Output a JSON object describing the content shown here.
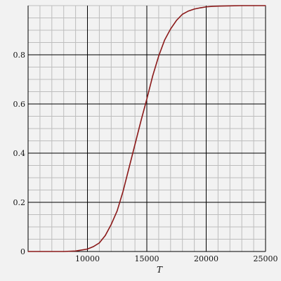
{
  "chart_data": {
    "type": "line",
    "xlabel": "T",
    "ylabel": "",
    "title": "",
    "xlim": [
      5000,
      25000
    ],
    "ylim": [
      0,
      1
    ],
    "grid": true,
    "x_ticks": [
      10000,
      15000,
      20000,
      25000
    ],
    "x_tick_labels": [
      "10000",
      "15000",
      "20000",
      "25000"
    ],
    "y_ticks": [
      0,
      0.2,
      0.4,
      0.6,
      0.8
    ],
    "y_tick_labels": [
      "0",
      "0.2",
      "0.4",
      "0.6",
      "0.8"
    ],
    "series": [
      {
        "color": "#8b1a1a",
        "x": [
          5000,
          8000,
          9000,
          10000,
          10500,
          11000,
          11500,
          12000,
          12500,
          13000,
          13500,
          14000,
          14500,
          15000,
          15500,
          16000,
          16500,
          17000,
          17500,
          18000,
          18500,
          19000,
          19500,
          20000,
          20500,
          21000,
          22000,
          23000,
          24000,
          25000
        ],
        "y": [
          0.0,
          0.0,
          0.002,
          0.01,
          0.02,
          0.035,
          0.065,
          0.11,
          0.165,
          0.245,
          0.34,
          0.435,
          0.53,
          0.62,
          0.715,
          0.795,
          0.86,
          0.905,
          0.94,
          0.965,
          0.978,
          0.986,
          0.991,
          0.995,
          0.997,
          0.998,
          0.999,
          1.0,
          1.0,
          1.0
        ]
      }
    ]
  },
  "colors": {
    "background": "#f2f2f2",
    "major_grid": "#000000",
    "minor_grid": "#bdbdbd",
    "curve": "#8b1a1a"
  }
}
